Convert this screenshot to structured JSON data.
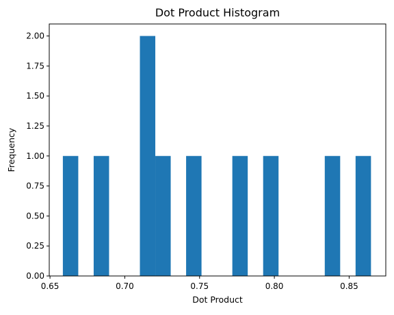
{
  "chart_data": {
    "type": "bar",
    "title": "Dot Product Histogram",
    "xlabel": "Dot Product",
    "ylabel": "Frequency",
    "xlim": [
      0.6495,
      0.8745
    ],
    "ylim": [
      0,
      2.1
    ],
    "bin_width": 0.0103,
    "bins": [
      {
        "x0": 0.6586,
        "x1": 0.6689,
        "count": 1
      },
      {
        "x0": 0.6792,
        "x1": 0.6895,
        "count": 1
      },
      {
        "x0": 0.7101,
        "x1": 0.7204,
        "count": 2
      },
      {
        "x0": 0.7204,
        "x1": 0.7307,
        "count": 1
      },
      {
        "x0": 0.741,
        "x1": 0.7513,
        "count": 1
      },
      {
        "x0": 0.7719,
        "x1": 0.7822,
        "count": 1
      },
      {
        "x0": 0.7925,
        "x1": 0.8028,
        "count": 1
      },
      {
        "x0": 0.8337,
        "x1": 0.844,
        "count": 1
      },
      {
        "x0": 0.8543,
        "x1": 0.8646,
        "count": 1
      }
    ],
    "xticks": [
      0.65,
      0.7,
      0.75,
      0.8,
      0.85
    ],
    "xtick_labels": [
      "0.65",
      "0.70",
      "0.75",
      "0.80",
      "0.85"
    ],
    "yticks": [
      0,
      0.25,
      0.5,
      0.75,
      1.0,
      1.25,
      1.5,
      1.75,
      2.0
    ],
    "ytick_labels": [
      "0.00",
      "0.25",
      "0.50",
      "0.75",
      "1.00",
      "1.25",
      "1.50",
      "1.75",
      "2.00"
    ],
    "grid": false,
    "legend": "none",
    "colors": {
      "bar": "#1f77b4",
      "axes": "#000000",
      "background": "#ffffff"
    }
  }
}
